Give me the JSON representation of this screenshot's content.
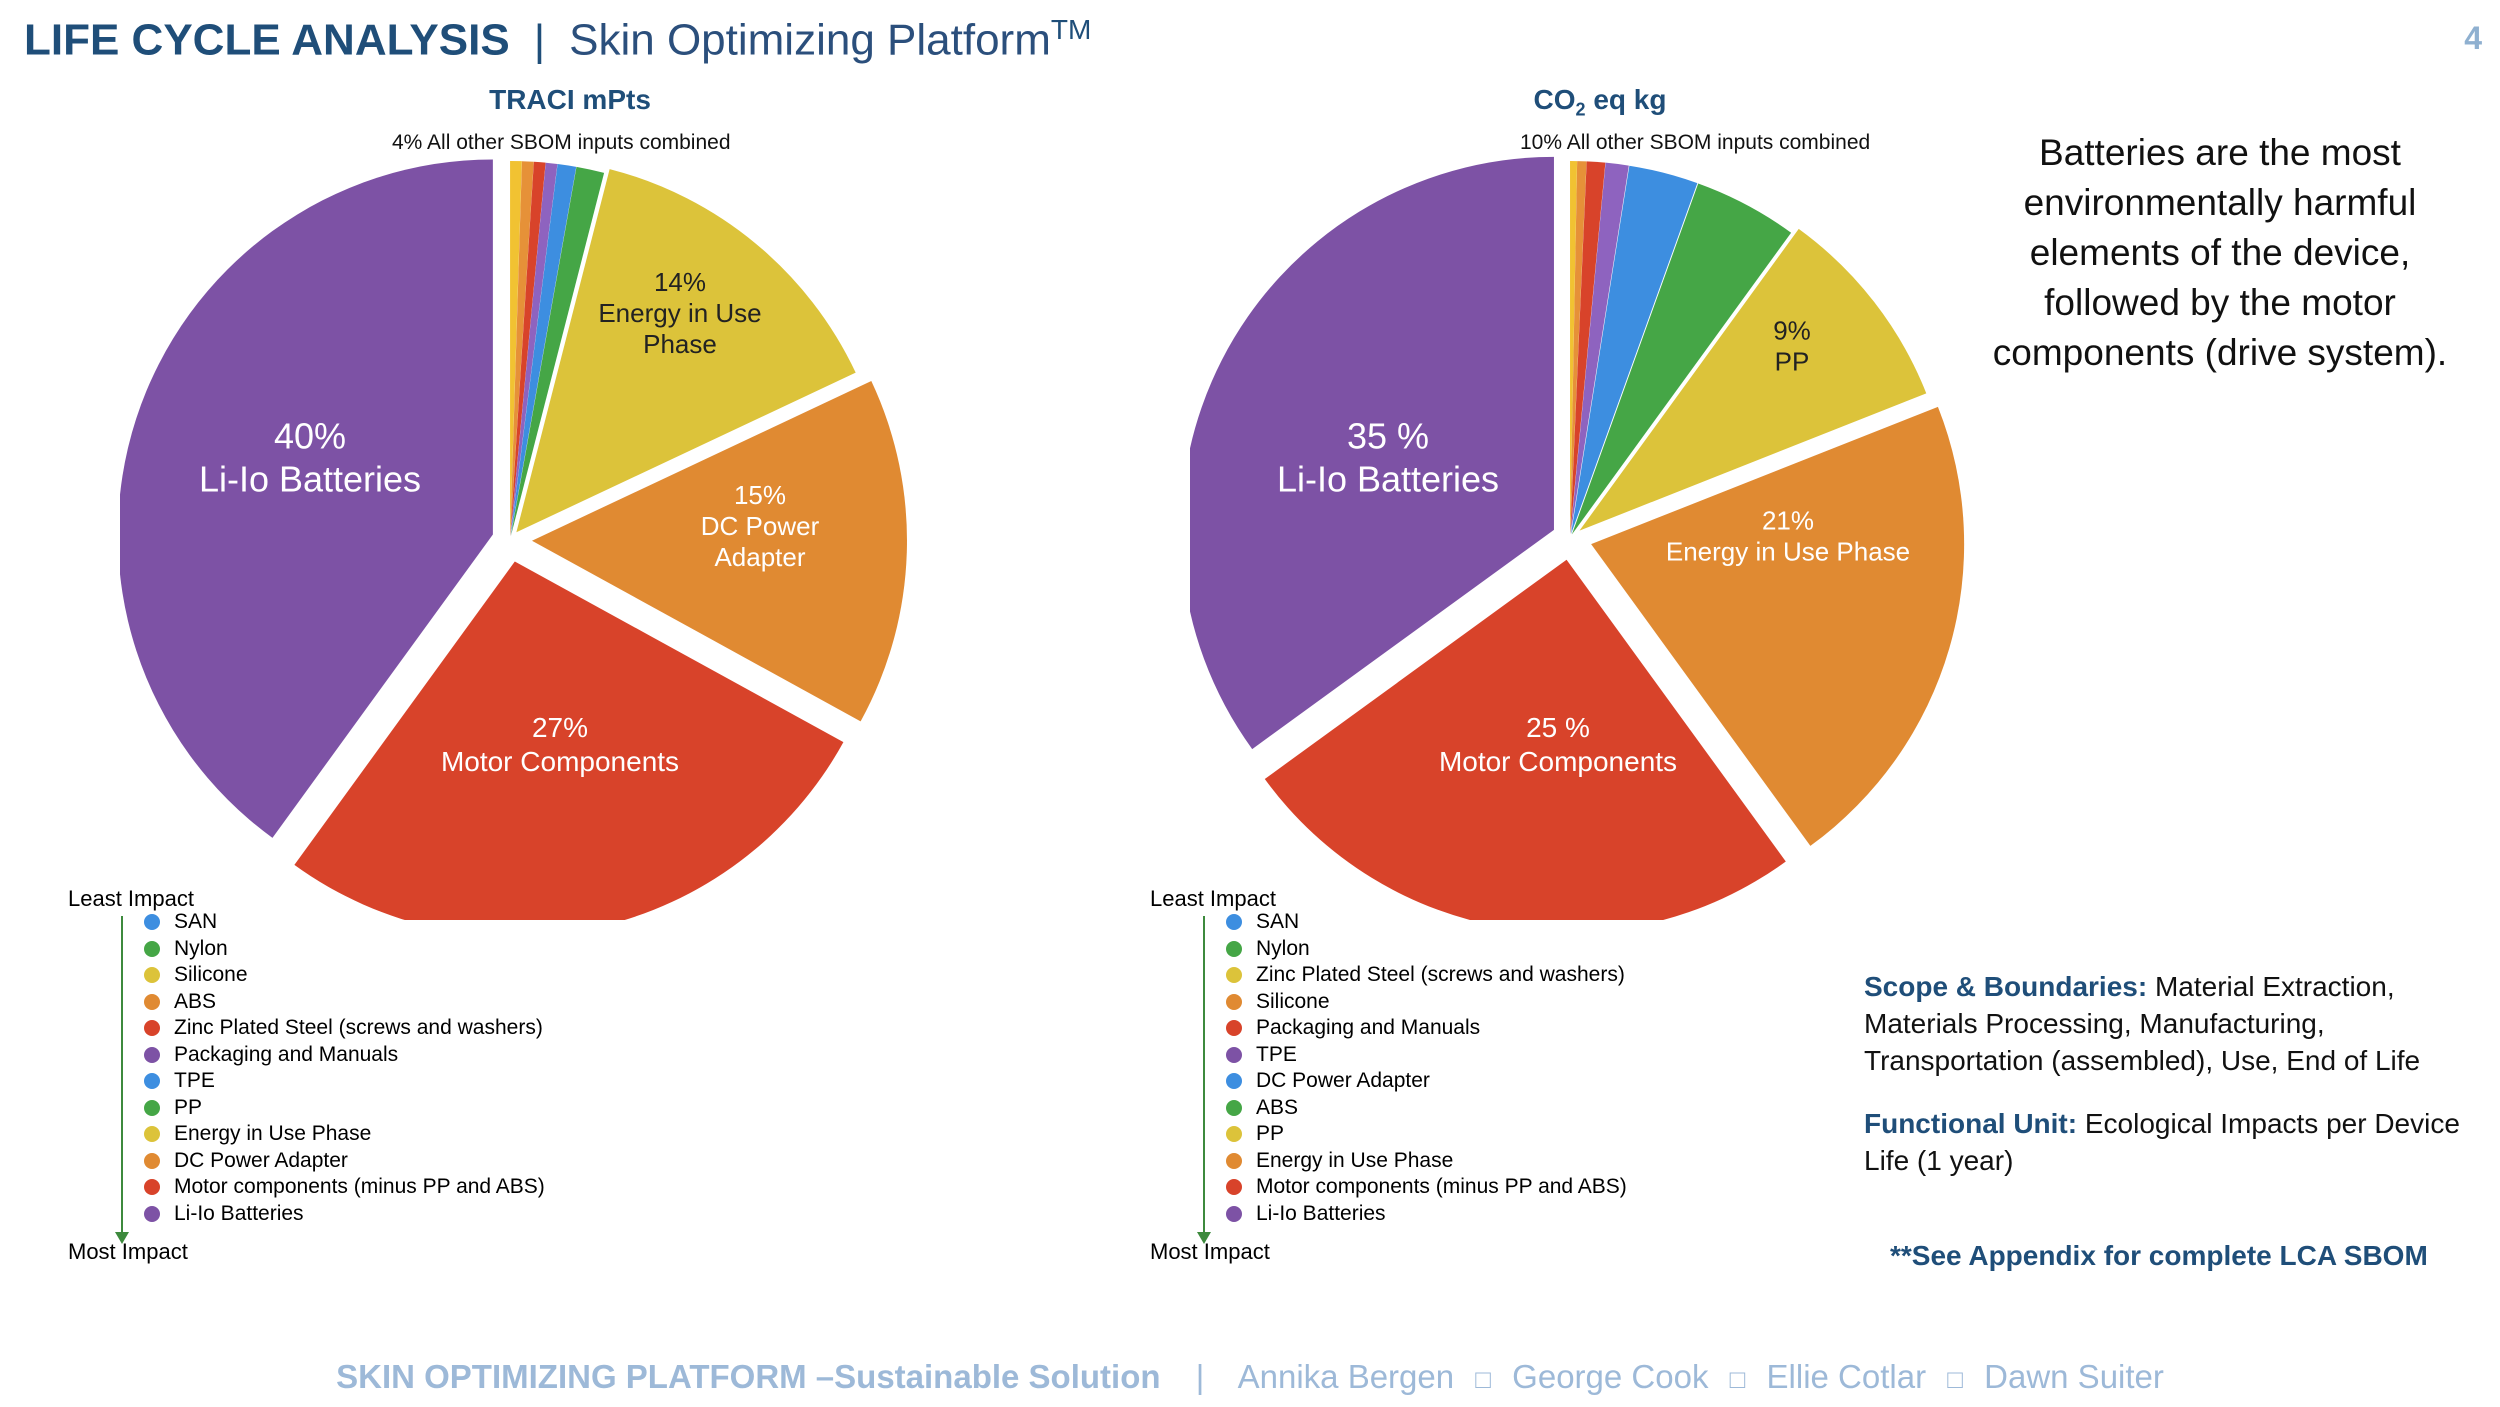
{
  "header": {
    "title_bold": "LIFE CYCLE ANALYSIS",
    "separator": "|",
    "subtitle": "Skin Optimizing Platform",
    "subtitle_sup": "TM",
    "page_number": "4"
  },
  "colors": {
    "heading": "#1f4e79",
    "footer": "#9db9d8",
    "purple": "#7d52a5",
    "red": "#d8432a",
    "orange": "#e08a32",
    "yellow": "#dcc33a",
    "green": "#45a646",
    "blue": "#3d8ee0"
  },
  "summary_text": "Batteries are the most environmentally harmful elements of the device, followed by the motor components (drive system).",
  "scope": {
    "scope_label": "Scope & Boundaries:",
    "scope_text": " Material Extraction, Materials Processing, Manufacturing, Transportation (assembled), Use, End of Life",
    "unit_label": "Functional Unit:",
    "unit_text": " Ecological Impacts per Device Life (1 year)",
    "appendix": "**See Appendix for complete LCA SBOM"
  },
  "footer": {
    "bold": "SKIN OPTIMIZING PLATFORM –Sustainable Solution",
    "sep": "|",
    "names": [
      "Annika Bergen",
      "George Cook",
      "Ellie Cotlar",
      "Dawn Suiter"
    ],
    "name_sep": "□"
  },
  "chart_data": [
    {
      "type": "pie",
      "title": "TRACI mPts",
      "top_note": "4% All other SBOM inputs combined",
      "slices": [
        {
          "label": "Li-Io Batteries",
          "value": 40,
          "value_label": "40%",
          "color": "#7d52a5"
        },
        {
          "label": "Yellow",
          "value": 0.5,
          "value_label": "",
          "color": "#f1c232"
        },
        {
          "label": "Orange",
          "value": 0.5,
          "value_label": "",
          "color": "#e69138"
        },
        {
          "label": "Red",
          "value": 0.5,
          "value_label": "",
          "color": "#d8432a"
        },
        {
          "label": "Purple",
          "value": 0.5,
          "value_label": "",
          "color": "#8e63bf"
        },
        {
          "label": "Blue",
          "value": 0.8,
          "value_label": "",
          "color": "#3d8ee0"
        },
        {
          "label": "Green",
          "value": 1.2,
          "value_label": "",
          "color": "#45a646"
        },
        {
          "label": "Energy in Use Phase",
          "value": 14,
          "value_label": "14%",
          "color": "#dcc33a"
        },
        {
          "label": "DC Power Adapter",
          "value": 15,
          "value_label": "15%",
          "color": "#e08a32"
        },
        {
          "label": "Motor Components",
          "value": 27,
          "value_label": "27%",
          "color": "#d8432a"
        }
      ],
      "slice_texts": [
        {
          "lines": [
            "40%",
            "Li-Io Batteries"
          ]
        },
        {
          "lines": [
            "14%",
            "Energy in Use",
            "Phase"
          ]
        },
        {
          "lines": [
            "15%",
            "DC Power",
            "Adapter"
          ]
        },
        {
          "lines": [
            "27%",
            "Motor Components"
          ]
        }
      ],
      "legend": {
        "least": "Least Impact",
        "most": "Most Impact",
        "items": [
          {
            "label": "SAN",
            "color": "#3d8ee0"
          },
          {
            "label": "Nylon",
            "color": "#45a646"
          },
          {
            "label": "Silicone",
            "color": "#dcc33a"
          },
          {
            "label": "ABS",
            "color": "#e08a32"
          },
          {
            "label": "Zinc Plated Steel (screws and washers)",
            "color": "#d8432a"
          },
          {
            "label": "Packaging and Manuals",
            "color": "#7d52a5"
          },
          {
            "label": "TPE",
            "color": "#3d8ee0"
          },
          {
            "label": "PP",
            "color": "#45a646"
          },
          {
            "label": "Energy in Use Phase",
            "color": "#dcc33a"
          },
          {
            "label": "DC Power Adapter",
            "color": "#e08a32"
          },
          {
            "label": "Motor components (minus PP and ABS)",
            "color": "#d8432a"
          },
          {
            "label": "Li-Io Batteries",
            "color": "#7d52a5"
          }
        ]
      }
    },
    {
      "type": "pie",
      "title_main": "CO",
      "title_sub": "2",
      "title_rest": " eq kg",
      "top_note": "10% All other SBOM inputs combined",
      "slices": [
        {
          "label": "Li-Io Batteries",
          "value": 35,
          "value_label": "35 %",
          "color": "#7d52a5"
        },
        {
          "label": "Yellow",
          "value": 0.3,
          "value_label": "",
          "color": "#f1c232"
        },
        {
          "label": "Orange",
          "value": 0.4,
          "value_label": "",
          "color": "#e69138"
        },
        {
          "label": "Red",
          "value": 0.8,
          "value_label": "",
          "color": "#d8432a"
        },
        {
          "label": "Purple",
          "value": 1.0,
          "value_label": "",
          "color": "#8e63bf"
        },
        {
          "label": "Blue",
          "value": 3.0,
          "value_label": "",
          "color": "#3d8ee0"
        },
        {
          "label": "Green",
          "value": 4.5,
          "value_label": "",
          "color": "#45a646"
        },
        {
          "label": "PP",
          "value": 9,
          "value_label": "9%",
          "color": "#dcc33a"
        },
        {
          "label": "Energy in Use Phase",
          "value": 21,
          "value_label": "21%",
          "color": "#e08a32"
        },
        {
          "label": "Motor Components",
          "value": 25,
          "value_label": "25 %",
          "color": "#d8432a"
        }
      ],
      "slice_texts": [
        {
          "lines": [
            "35 %",
            "Li-Io Batteries"
          ]
        },
        {
          "lines": [
            "9%",
            "PP"
          ]
        },
        {
          "lines": [
            "21%",
            "Energy in Use Phase"
          ]
        },
        {
          "lines": [
            "25 %",
            "Motor Components"
          ]
        }
      ],
      "legend": {
        "least": "Least Impact",
        "most": "Most Impact",
        "items": [
          {
            "label": "SAN",
            "color": "#3d8ee0"
          },
          {
            "label": "Nylon",
            "color": "#45a646"
          },
          {
            "label": "Zinc Plated Steel (screws and washers)",
            "color": "#dcc33a"
          },
          {
            "label": "Silicone",
            "color": "#e08a32"
          },
          {
            "label": "Packaging and Manuals",
            "color": "#d8432a"
          },
          {
            "label": "TPE",
            "color": "#7d52a5"
          },
          {
            "label": "DC Power Adapter",
            "color": "#3d8ee0"
          },
          {
            "label": "ABS",
            "color": "#45a646"
          },
          {
            "label": "PP",
            "color": "#dcc33a"
          },
          {
            "label": "Energy in Use Phase",
            "color": "#e08a32"
          },
          {
            "label": "Motor components (minus PP and ABS)",
            "color": "#d8432a"
          },
          {
            "label": "Li-Io Batteries",
            "color": "#7d52a5"
          }
        ]
      }
    }
  ]
}
